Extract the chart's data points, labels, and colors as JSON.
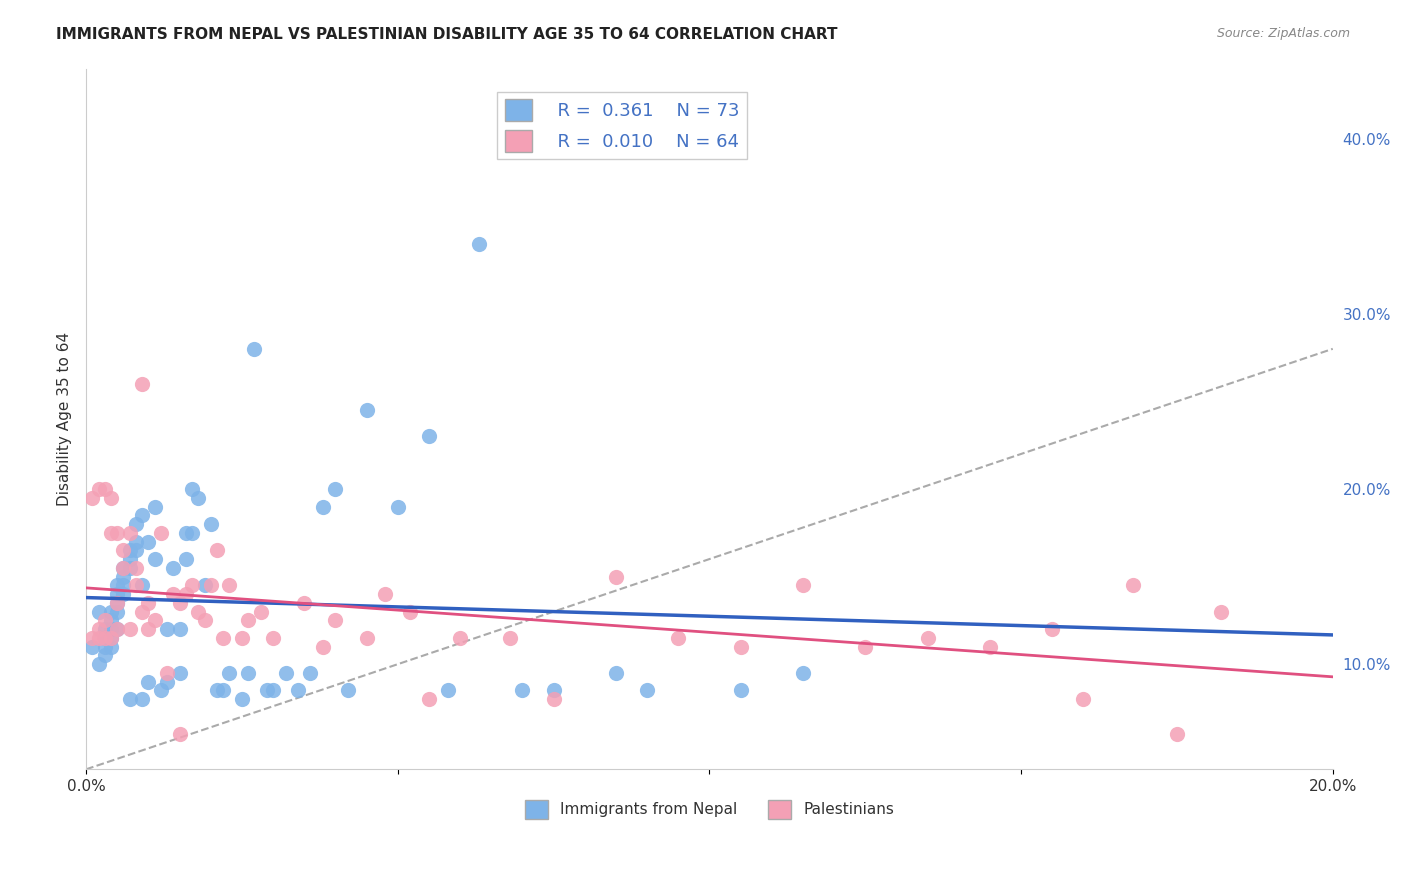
{
  "title": "IMMIGRANTS FROM NEPAL VS PALESTINIAN DISABILITY AGE 35 TO 64 CORRELATION CHART",
  "source": "Source: ZipAtlas.com",
  "xlabel_bottom": "",
  "ylabel": "Disability Age 35 to 64",
  "xmin": 0.0,
  "xmax": 0.2,
  "ymin": 0.04,
  "ymax": 0.44,
  "xticks": [
    0.0,
    0.05,
    0.1,
    0.15,
    0.2
  ],
  "xticklabels": [
    "0.0%",
    "",
    "",
    "",
    "20.0%"
  ],
  "yticks_right": [
    0.1,
    0.2,
    0.3,
    0.4
  ],
  "ytick_labels_right": [
    "10.0%",
    "20.0%",
    "30.0%",
    "40.0%"
  ],
  "legend_nepal_r": "R =  0.361",
  "legend_nepal_n": "N = 73",
  "legend_pal_r": "R =  0.010",
  "legend_pal_n": "N = 64",
  "nepal_color": "#7EB3E8",
  "pal_color": "#F4A0B5",
  "nepal_line_color": "#3060C0",
  "pal_line_color": "#E05080",
  "ref_line_color": "#AAAAAA",
  "background_color": "#FFFFFF",
  "grid_color": "#DDDDDD",
  "nepal_R": 0.361,
  "pal_R": 0.01,
  "nepal_scatter_x": [
    0.001,
    0.002,
    0.002,
    0.003,
    0.003,
    0.003,
    0.003,
    0.004,
    0.004,
    0.004,
    0.004,
    0.004,
    0.005,
    0.005,
    0.005,
    0.005,
    0.005,
    0.006,
    0.006,
    0.006,
    0.006,
    0.007,
    0.007,
    0.007,
    0.007,
    0.008,
    0.008,
    0.008,
    0.009,
    0.009,
    0.009,
    0.01,
    0.01,
    0.011,
    0.011,
    0.012,
    0.013,
    0.013,
    0.014,
    0.015,
    0.015,
    0.016,
    0.016,
    0.017,
    0.017,
    0.018,
    0.019,
    0.02,
    0.021,
    0.022,
    0.023,
    0.025,
    0.026,
    0.027,
    0.029,
    0.03,
    0.032,
    0.034,
    0.036,
    0.038,
    0.04,
    0.042,
    0.045,
    0.05,
    0.055,
    0.058,
    0.063,
    0.07,
    0.075,
    0.085,
    0.09,
    0.105,
    0.115
  ],
  "nepal_scatter_y": [
    0.11,
    0.1,
    0.13,
    0.12,
    0.115,
    0.11,
    0.105,
    0.13,
    0.125,
    0.12,
    0.115,
    0.11,
    0.145,
    0.14,
    0.135,
    0.13,
    0.12,
    0.155,
    0.15,
    0.145,
    0.14,
    0.165,
    0.16,
    0.155,
    0.08,
    0.18,
    0.17,
    0.165,
    0.145,
    0.185,
    0.08,
    0.17,
    0.09,
    0.19,
    0.16,
    0.085,
    0.09,
    0.12,
    0.155,
    0.095,
    0.12,
    0.175,
    0.16,
    0.2,
    0.175,
    0.195,
    0.145,
    0.18,
    0.085,
    0.085,
    0.095,
    0.08,
    0.095,
    0.28,
    0.085,
    0.085,
    0.095,
    0.085,
    0.095,
    0.19,
    0.2,
    0.085,
    0.245,
    0.19,
    0.23,
    0.085,
    0.34,
    0.085,
    0.085,
    0.095,
    0.085,
    0.085,
    0.095
  ],
  "pal_scatter_x": [
    0.001,
    0.001,
    0.002,
    0.002,
    0.002,
    0.003,
    0.003,
    0.003,
    0.004,
    0.004,
    0.004,
    0.005,
    0.005,
    0.005,
    0.006,
    0.006,
    0.007,
    0.007,
    0.008,
    0.008,
    0.009,
    0.009,
    0.01,
    0.01,
    0.011,
    0.012,
    0.013,
    0.014,
    0.015,
    0.015,
    0.016,
    0.017,
    0.018,
    0.019,
    0.02,
    0.021,
    0.022,
    0.023,
    0.025,
    0.026,
    0.028,
    0.03,
    0.035,
    0.038,
    0.04,
    0.045,
    0.048,
    0.052,
    0.055,
    0.06,
    0.068,
    0.075,
    0.085,
    0.095,
    0.105,
    0.115,
    0.125,
    0.135,
    0.145,
    0.155,
    0.16,
    0.168,
    0.175,
    0.182
  ],
  "pal_scatter_y": [
    0.115,
    0.195,
    0.12,
    0.115,
    0.2,
    0.125,
    0.115,
    0.2,
    0.195,
    0.175,
    0.115,
    0.135,
    0.175,
    0.12,
    0.165,
    0.155,
    0.175,
    0.12,
    0.155,
    0.145,
    0.13,
    0.26,
    0.135,
    0.12,
    0.125,
    0.175,
    0.095,
    0.14,
    0.135,
    0.06,
    0.14,
    0.145,
    0.13,
    0.125,
    0.145,
    0.165,
    0.115,
    0.145,
    0.115,
    0.125,
    0.13,
    0.115,
    0.135,
    0.11,
    0.125,
    0.115,
    0.14,
    0.13,
    0.08,
    0.115,
    0.115,
    0.08,
    0.15,
    0.115,
    0.11,
    0.145,
    0.11,
    0.115,
    0.11,
    0.12,
    0.08,
    0.145,
    0.06,
    0.13
  ]
}
